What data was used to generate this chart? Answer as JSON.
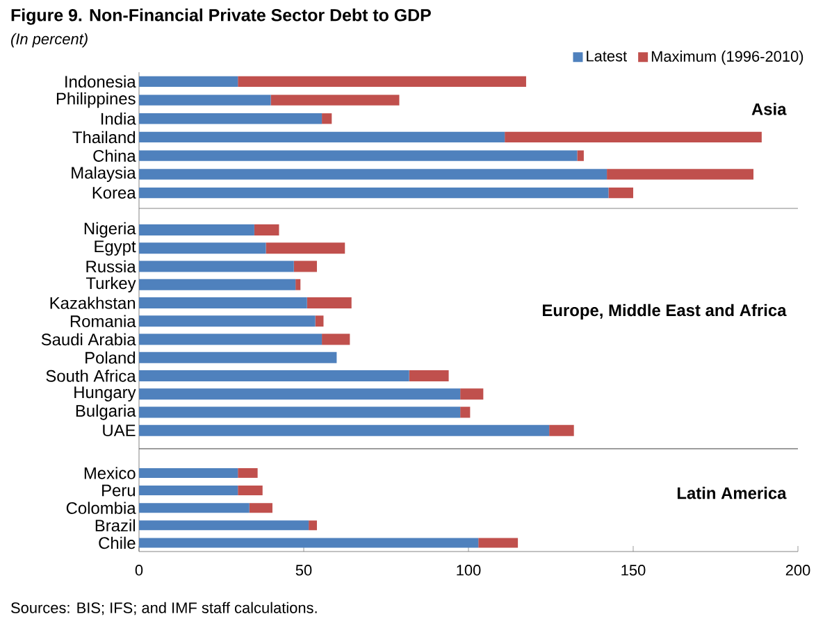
{
  "chart_data": [
    {
      "type": "bar",
      "orientation": "horizontal",
      "stacked": true,
      "title": "Figure 9. Non-Financial Private Sector Debt to GDP",
      "subtitle": "(In percent)",
      "categories": [
        "Indonesia",
        "Philippines",
        "India",
        "Thailand",
        "China",
        "Malaysia",
        "Korea"
      ],
      "series": [
        {
          "name": "Latest",
          "color": "#4f81bd",
          "values": [
            30,
            40,
            55.5,
            111,
            133,
            142,
            142.5
          ]
        },
        {
          "name": "Maximum (1996-2010)",
          "color": "#c0504d",
          "values": [
            87.5,
            39,
            3,
            78,
            2,
            44.5,
            7.5
          ]
        }
      ],
      "xlim": [
        0,
        200
      ],
      "xticks": [
        0,
        50,
        100,
        150,
        200
      ],
      "tick_labels": "y",
      "legend": "top right",
      "annotations": [
        "Asia"
      ]
    },
    {
      "type": "bar",
      "orientation": "horizontal",
      "stacked": true,
      "categories": [
        "Nigeria",
        "Egypt",
        "Russia",
        "Turkey",
        "Kazakhstan",
        "Romania",
        "Saudi Arabia",
        "Poland",
        "South Africa",
        "Hungary",
        "Bulgaria",
        "UAE"
      ],
      "series": [
        {
          "color": "#4f81bd",
          "values": [
            35,
            38.5,
            47,
            47.5,
            51,
            53.5,
            55.5,
            60,
            82,
            97.5,
            97.5,
            124.5
          ]
        },
        {
          "color": "#c0504d",
          "values": [
            7.5,
            24,
            7,
            1.5,
            13.5,
            2.5,
            8.5,
            0,
            12,
            7,
            3,
            7.5
          ]
        }
      ],
      "xlim": [
        0,
        200
      ],
      "xticks": [
        0,
        50,
        100,
        150,
        200
      ],
      "tick_labels": "y",
      "annotations": [
        "Europe, Middle East and Africa"
      ]
    },
    {
      "type": "bar",
      "orientation": "horizontal",
      "stacked": true,
      "categories": [
        "Mexico",
        "Peru",
        "Colombia",
        "Brazil",
        "Chile"
      ],
      "series": [
        {
          "color": "#4f81bd",
          "values": [
            30,
            30,
            33.5,
            51.5,
            103
          ]
        },
        {
          "color": "#c0504d",
          "values": [
            6,
            7.5,
            7,
            2.5,
            12
          ]
        }
      ],
      "xlim": [
        0,
        200
      ],
      "xticks": [
        0,
        50,
        100,
        150,
        200
      ],
      "annotations": [
        "Latin America",
        "Sources: BIS; IFS; and IMF staff calculations."
      ]
    }
  ]
}
